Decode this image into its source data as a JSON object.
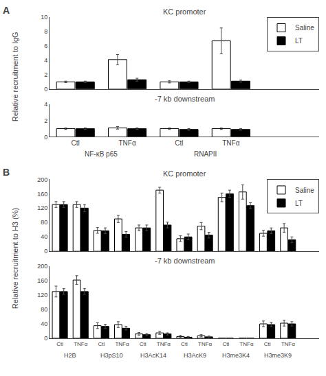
{
  "chart_data": [
    {
      "type": "bar",
      "title": "KC promoter",
      "ylabel": "Relative recruitment to IgG",
      "annotations": [
        "A"
      ],
      "categories": [
        "Ctl",
        "TNFα",
        "Ctl",
        "TNFα"
      ],
      "series": [
        {
          "name": "Saline",
          "color": "white",
          "values": [
            1.0,
            4.1,
            1.0,
            6.7
          ],
          "errors": [
            0.1,
            0.7,
            0.15,
            1.8
          ]
        },
        {
          "name": "LT",
          "color": "black",
          "values": [
            1.0,
            1.3,
            1.0,
            1.1
          ],
          "errors": [
            0.1,
            0.2,
            0.1,
            0.15
          ]
        }
      ],
      "ylim": [
        0,
        10
      ],
      "yticks": [
        0,
        2,
        4,
        6,
        8,
        10
      ],
      "grid": false,
      "legend": "upper right",
      "tick_labels": "y"
    },
    {
      "type": "bar",
      "title": "-7 kb downstream",
      "categories": [
        "Ctl",
        "TNFα",
        "Ctl",
        "TNFα"
      ],
      "groups": [
        "NF-κB p65",
        "RNAPII"
      ],
      "series": [
        {
          "name": "Saline",
          "color": "white",
          "values": [
            1.0,
            1.1,
            1.0,
            1.0
          ],
          "errors": [
            0.1,
            0.15,
            0.1,
            0.1
          ]
        },
        {
          "name": "LT",
          "color": "black",
          "values": [
            1.0,
            1.0,
            0.9,
            0.9
          ],
          "errors": [
            0.1,
            0.1,
            0.1,
            0.1
          ]
        }
      ],
      "ylim": [
        0,
        4
      ],
      "yticks": [
        0,
        2,
        4
      ],
      "grid": false
    },
    {
      "type": "bar",
      "title": "KC promoter",
      "ylabel": "Relative recruitment to H3 (%)",
      "annotations": [
        "B"
      ],
      "categories": [
        "Ctl",
        "TNFα",
        "Ctl",
        "TNFα",
        "Ctl",
        "TNFα",
        "Ctl",
        "TNFα",
        "Ctl",
        "TNFα",
        "Ctl",
        "TNFα"
      ],
      "series": [
        {
          "name": "Saline",
          "color": "white",
          "values": [
            130,
            130,
            58,
            90,
            65,
            170,
            35,
            70,
            150,
            165,
            50,
            65
          ],
          "errors": [
            8,
            8,
            8,
            10,
            8,
            8,
            8,
            10,
            12,
            20,
            8,
            12
          ]
        },
        {
          "name": "LT",
          "color": "black",
          "values": [
            130,
            120,
            57,
            47,
            65,
            73,
            40,
            45,
            160,
            127,
            57,
            32
          ],
          "errors": [
            8,
            10,
            8,
            8,
            8,
            8,
            8,
            8,
            10,
            8,
            8,
            8
          ]
        }
      ],
      "ylim": [
        0,
        200
      ],
      "yticks": [
        0,
        40,
        80,
        120,
        160,
        200
      ],
      "grid": false,
      "legend": "upper right",
      "tick_labels": "y"
    },
    {
      "type": "bar",
      "title": "-7 kb downstream",
      "categories": [
        "Ctl",
        "TNFα",
        "Ctl",
        "TNFα",
        "Ctl",
        "TNFα",
        "Ctl",
        "TNFα",
        "Ctl",
        "TNFα",
        "Ctl",
        "TNFα"
      ],
      "groups": [
        "H2B",
        "H3pS10",
        "H3AcK14",
        "H3AcK9",
        "H3me3K4",
        "H3me3K9"
      ],
      "series": [
        {
          "name": "Saline",
          "color": "white",
          "values": [
            130,
            162,
            35,
            38,
            12,
            15,
            5,
            7,
            0,
            0,
            40,
            42
          ],
          "errors": [
            15,
            12,
            8,
            8,
            4,
            4,
            3,
            3,
            0,
            0,
            8,
            8
          ]
        },
        {
          "name": "LT",
          "color": "black",
          "values": [
            130,
            130,
            33,
            28,
            10,
            12,
            3,
            4,
            0,
            0,
            38,
            40
          ],
          "errors": [
            8,
            8,
            6,
            5,
            3,
            3,
            2,
            2,
            0,
            0,
            6,
            6
          ]
        }
      ],
      "ylim": [
        0,
        200
      ],
      "yticks": [
        0,
        40,
        80,
        120,
        160,
        200
      ],
      "grid": false
    }
  ]
}
